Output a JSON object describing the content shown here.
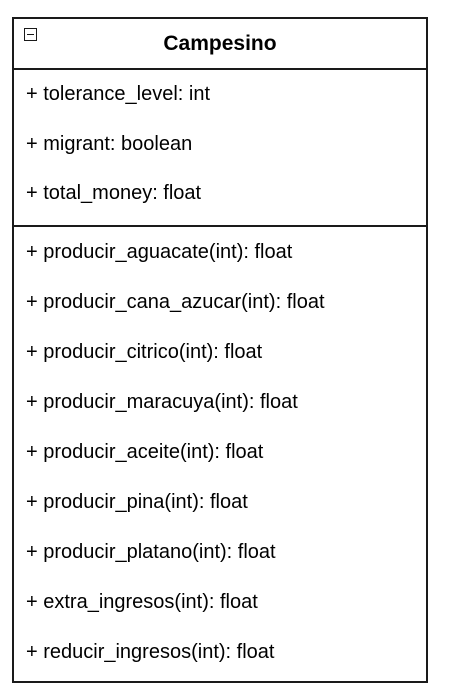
{
  "class": {
    "name": "Campesino",
    "collapse_icon": "minus-square-icon",
    "attributes": [
      "+ tolerance_level: int",
      "+ migrant: boolean",
      "+ total_money: float"
    ],
    "operations": [
      "+ producir_aguacate(int): float",
      "+ producir_cana_azucar(int): float",
      "+ producir_citrico(int): float",
      "+ producir_maracuya(int): float",
      "+ producir_aceite(int): float",
      "+ producir_pina(int): float",
      "+ producir_platano(int): float",
      "+ extra_ingresos(int): float",
      "+ reducir_ingresos(int): float"
    ]
  },
  "colors": {
    "border": "#1a1a1a",
    "background": "#ffffff",
    "text": "#000000"
  }
}
